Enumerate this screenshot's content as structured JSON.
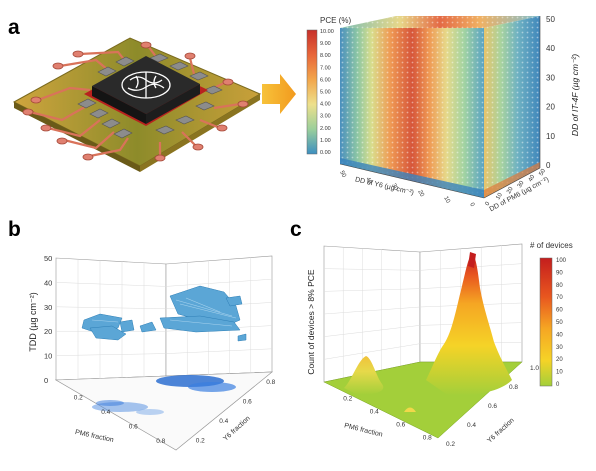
{
  "panel_labels": {
    "a": "a",
    "b": "b",
    "c": "c"
  },
  "panel_a": {
    "colorbar": {
      "title": "PCE (%)",
      "ticks": [
        "10.00",
        "9.00",
        "8.00",
        "7.00",
        "6.00",
        "5.00",
        "4.00",
        "3.00",
        "2.00",
        "1.00",
        "0.00"
      ],
      "colors": [
        "#c7302a",
        "#e8663a",
        "#f2a64b",
        "#ede08c",
        "#9bcf9b",
        "#3d8fc0"
      ]
    },
    "z_axis_label": "DD of IT-4F (µg cm⁻²)",
    "z_ticks": [
      "0",
      "10",
      "20",
      "30",
      "40",
      "50"
    ],
    "x_axis_label": "DD of Y6 (µg cm⁻²)",
    "y_axis_label": "DD of PM6 (µg cm⁻²)",
    "x_ticks": [
      "0",
      "10",
      "20",
      "30",
      "40",
      "50"
    ],
    "y_ticks": [
      "0",
      "10",
      "20",
      "30",
      "40",
      "50"
    ]
  },
  "panel_b": {
    "z_axis_label": "TDD (µg cm⁻²)",
    "z_ticks": [
      "0",
      "10",
      "20",
      "30",
      "40",
      "50"
    ],
    "x_axis_label": "PM6 fraction",
    "y_axis_label": "Y6 fraction",
    "x_ticks": [
      "0.2",
      "0.4",
      "0.6",
      "0.8"
    ],
    "y_ticks": [
      "0.2",
      "0.4",
      "0.6",
      "0.8"
    ]
  },
  "panel_c": {
    "z_axis_label": "Count of devices > 8% PCE",
    "x_axis_label": "PM6 fraction",
    "y_axis_label": "Y6 fraction",
    "x_ticks": [
      "0.2",
      "0.4",
      "0.6",
      "0.8"
    ],
    "y_ticks": [
      "0.2",
      "0.4",
      "0.6",
      "0.8",
      "1.0"
    ],
    "colorbar": {
      "title": "# of devices",
      "ticks": [
        "100",
        "90",
        "80",
        "70",
        "60",
        "50",
        "40",
        "30",
        "20",
        "10",
        "0"
      ],
      "colors": [
        "#c41e1e",
        "#e8561f",
        "#f5a623",
        "#f5d327",
        "#a3cf3a"
      ]
    }
  }
}
